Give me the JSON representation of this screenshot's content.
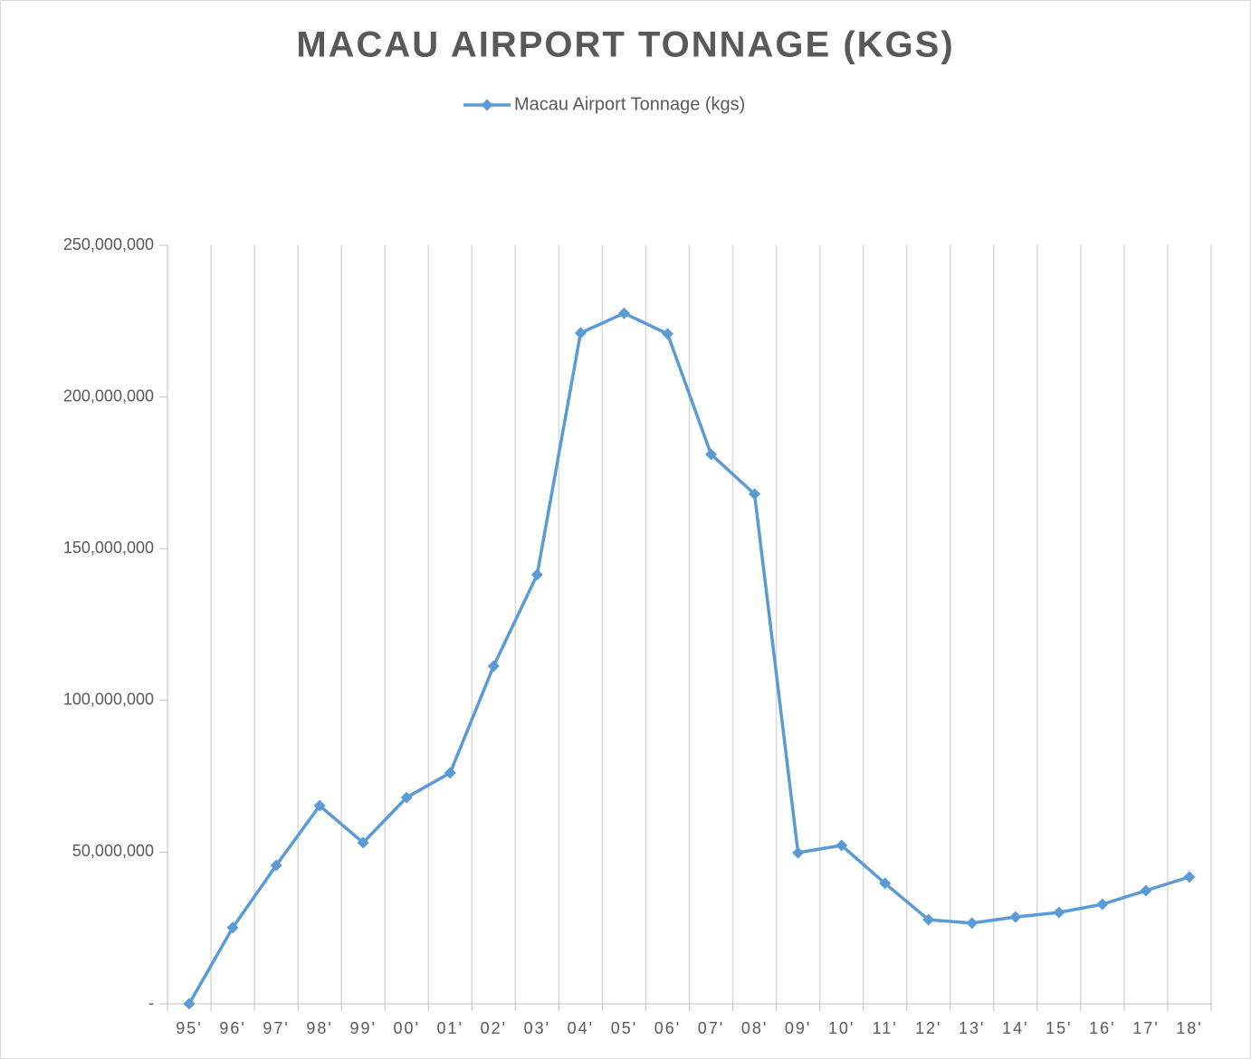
{
  "chart_data": {
    "type": "line",
    "title": "MACAU AIRPORT TONNAGE (KGS)",
    "categories": [
      "95'",
      "96'",
      "97'",
      "98'",
      "99'",
      "00'",
      "01'",
      "02'",
      "03'",
      "04'",
      "05'",
      "06'",
      "07'",
      "08'",
      "09'",
      "10'",
      "11'",
      "12'",
      "13'",
      "14'",
      "15'",
      "16'",
      "17'",
      "18'"
    ],
    "series": [
      {
        "name": "Macau Airport Tonnage (kgs)",
        "color": "#5b9bd5",
        "values": [
          0,
          25100000,
          45600000,
          65300000,
          53100000,
          68000000,
          76100000,
          111300000,
          141400000,
          221100000,
          227600000,
          220800000,
          181100000,
          168000000,
          49800000,
          52200000,
          39700000,
          27700000,
          26600000,
          28600000,
          30100000,
          32800000,
          37300000,
          41800000
        ]
      }
    ],
    "ylim": [
      0,
      250000000
    ],
    "yticks": [
      {
        "value": 0,
        "label": "-"
      },
      {
        "value": 50000000,
        "label": "50,000,000"
      },
      {
        "value": 100000000,
        "label": "100,000,000"
      },
      {
        "value": 150000000,
        "label": "150,000,000"
      },
      {
        "value": 200000000,
        "label": "200,000,000"
      },
      {
        "value": 250000000,
        "label": "250,000,000"
      }
    ],
    "grid": true,
    "legend": "top"
  }
}
